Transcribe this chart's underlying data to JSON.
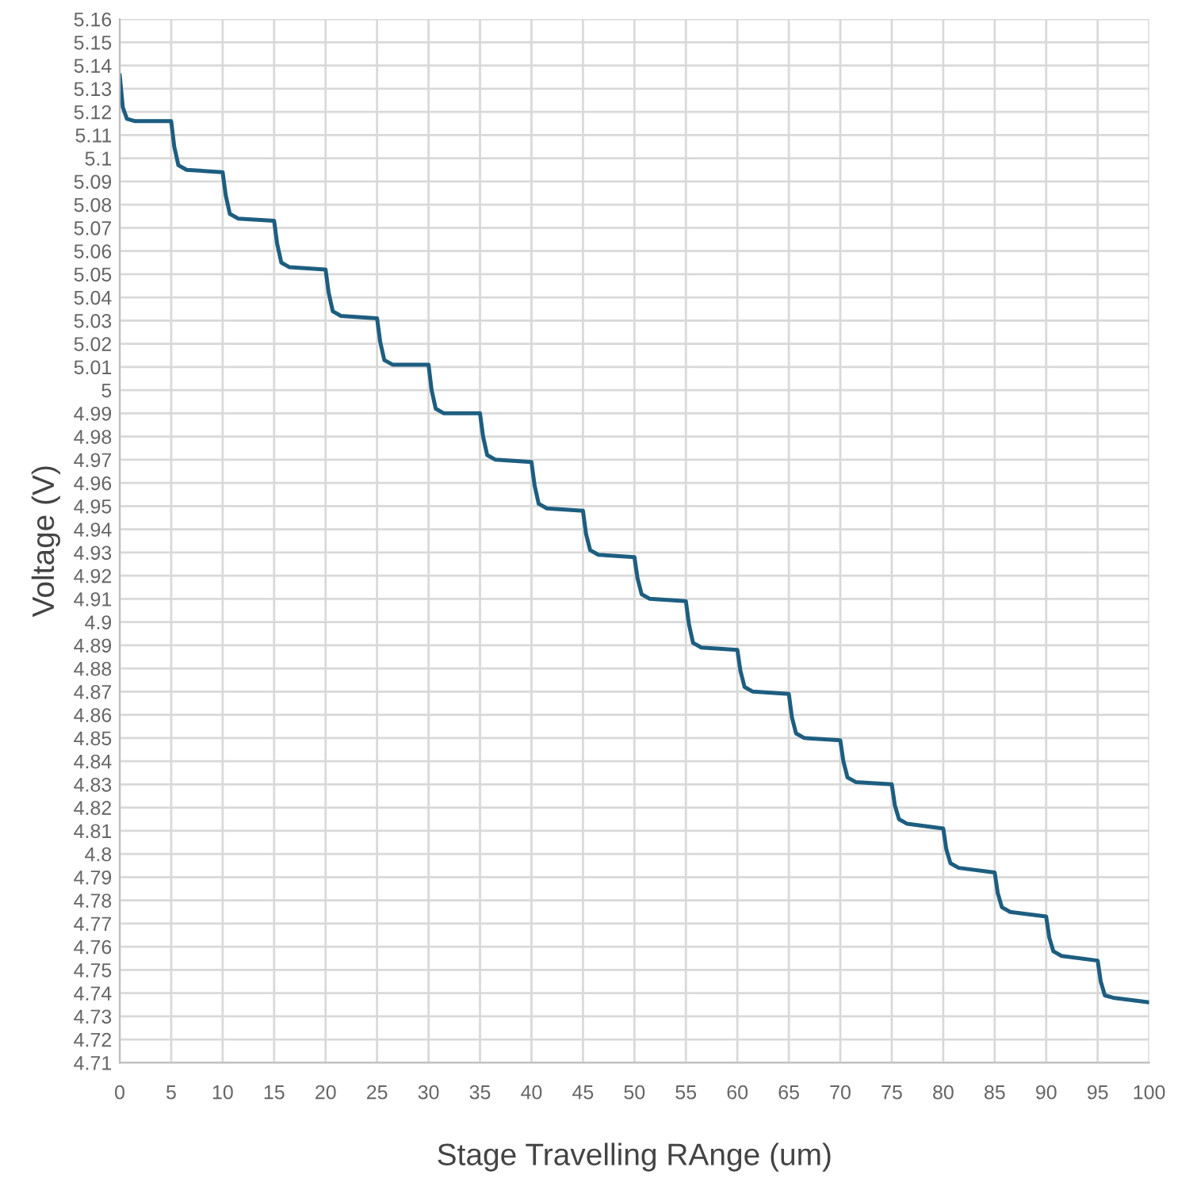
{
  "chart_data": {
    "type": "line",
    "xlabel": "Stage Travelling RAnge (um)",
    "ylabel": "Voltage (V)",
    "xlim": [
      0,
      100
    ],
    "xticks": [
      0,
      5,
      10,
      15,
      20,
      25,
      30,
      35,
      40,
      45,
      50,
      55,
      60,
      65,
      70,
      75,
      80,
      85,
      90,
      95,
      100
    ],
    "ylim": [
      4.71,
      5.16
    ],
    "yticks": [
      4.71,
      4.72,
      4.73,
      4.74,
      4.75,
      4.76,
      4.77,
      4.78,
      4.79,
      4.8,
      4.81,
      4.82,
      4.83,
      4.84,
      4.85,
      4.86,
      4.87,
      4.88,
      4.89,
      4.9,
      4.91,
      4.92,
      4.93,
      4.94,
      4.95,
      4.96,
      4.97,
      4.98,
      4.99,
      5,
      5.01,
      5.02,
      5.03,
      5.04,
      5.05,
      5.06,
      5.07,
      5.08,
      5.09,
      5.1,
      5.11,
      5.12,
      5.13,
      5.14,
      5.15,
      5.16
    ],
    "grid": true,
    "legend": false,
    "marker": "none",
    "line_style": "solid",
    "series": [
      {
        "color": "#1d5e80",
        "x": [
          0,
          0.3,
          0.7,
          1.5,
          5,
          5.3,
          5.7,
          6.5,
          10,
          10.3,
          10.7,
          11.5,
          15,
          15.3,
          15.7,
          16.5,
          20,
          20.3,
          20.7,
          21.5,
          25,
          25.3,
          25.7,
          26.5,
          30,
          30.3,
          30.7,
          31.5,
          35,
          35.3,
          35.7,
          36.5,
          40,
          40.3,
          40.7,
          41.5,
          45,
          45.3,
          45.7,
          46.5,
          50,
          50.3,
          50.7,
          51.5,
          55,
          55.3,
          55.7,
          56.5,
          60,
          60.3,
          60.7,
          61.5,
          65,
          65.3,
          65.7,
          66.5,
          70,
          70.3,
          70.7,
          71.5,
          75,
          75.3,
          75.7,
          76.5,
          80,
          80.3,
          80.7,
          81.5,
          85,
          85.3,
          85.7,
          86.5,
          90,
          90.3,
          90.7,
          91.5,
          95,
          95.3,
          95.7,
          96.5,
          100
        ],
        "values": [
          5.136,
          5.122,
          5.117,
          5.116,
          5.116,
          5.105,
          5.097,
          5.095,
          5.094,
          5.084,
          5.076,
          5.074,
          5.073,
          5.063,
          5.055,
          5.053,
          5.052,
          5.042,
          5.034,
          5.032,
          5.031,
          5.021,
          5.013,
          5.011,
          5.011,
          5.0,
          4.992,
          4.99,
          4.99,
          4.98,
          4.972,
          4.97,
          4.969,
          4.959,
          4.951,
          4.949,
          4.948,
          4.938,
          4.931,
          4.929,
          4.928,
          4.919,
          4.912,
          4.91,
          4.909,
          4.899,
          4.891,
          4.889,
          4.888,
          4.879,
          4.872,
          4.87,
          4.869,
          4.859,
          4.852,
          4.85,
          4.849,
          4.84,
          4.833,
          4.831,
          4.83,
          4.821,
          4.815,
          4.813,
          4.811,
          4.802,
          4.796,
          4.794,
          4.792,
          4.783,
          4.777,
          4.775,
          4.773,
          4.764,
          4.758,
          4.756,
          4.754,
          4.745,
          4.739,
          4.738,
          4.736
        ]
      }
    ]
  }
}
